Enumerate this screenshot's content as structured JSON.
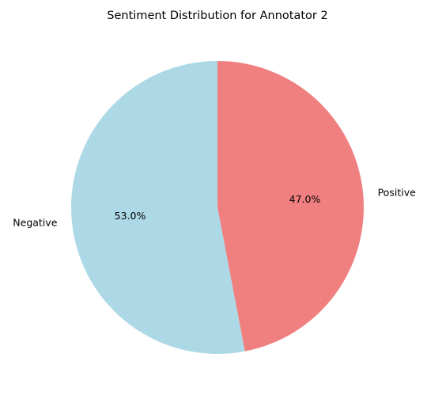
{
  "chart_data": {
    "type": "pie",
    "title": "Sentiment Distribution for Annotator 2",
    "start_angle_deg": 90,
    "direction": "clockwise",
    "slices": [
      {
        "label": "Positive",
        "value": 47.0,
        "pct_label": "47.0%",
        "color": "#f08080"
      },
      {
        "label": "Negative",
        "value": 53.0,
        "pct_label": "53.0%",
        "color": "#add8e6"
      }
    ]
  }
}
